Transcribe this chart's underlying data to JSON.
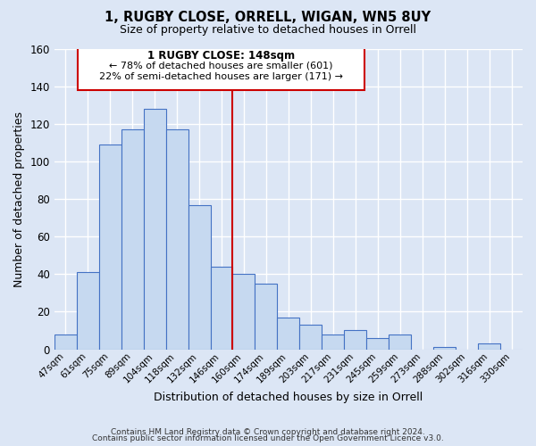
{
  "title": "1, RUGBY CLOSE, ORRELL, WIGAN, WN5 8UY",
  "subtitle": "Size of property relative to detached houses in Orrell",
  "xlabel": "Distribution of detached houses by size in Orrell",
  "ylabel": "Number of detached properties",
  "bar_labels": [
    "47sqm",
    "61sqm",
    "75sqm",
    "89sqm",
    "104sqm",
    "118sqm",
    "132sqm",
    "146sqm",
    "160sqm",
    "174sqm",
    "189sqm",
    "203sqm",
    "217sqm",
    "231sqm",
    "245sqm",
    "259sqm",
    "273sqm",
    "288sqm",
    "302sqm",
    "316sqm",
    "330sqm"
  ],
  "bar_values": [
    8,
    41,
    109,
    117,
    128,
    117,
    77,
    44,
    40,
    35,
    17,
    13,
    8,
    10,
    6,
    8,
    0,
    1,
    0,
    3,
    0
  ],
  "bar_color": "#c6d9f0",
  "bar_edge_color": "#4472c4",
  "marker_index": 7,
  "annotation_title": "1 RUGBY CLOSE: 148sqm",
  "annotation_line1": "← 78% of detached houses are smaller (601)",
  "annotation_line2": "22% of semi-detached houses are larger (171) →",
  "annotation_box_color": "#ffffff",
  "annotation_box_edge": "#cc0000",
  "vline_color": "#cc0000",
  "footer_line1": "Contains HM Land Registry data © Crown copyright and database right 2024.",
  "footer_line2": "Contains public sector information licensed under the Open Government Licence v3.0.",
  "ylim": [
    0,
    160
  ],
  "yticks": [
    0,
    20,
    40,
    60,
    80,
    100,
    120,
    140,
    160
  ],
  "background_color": "#dce6f5",
  "plot_bg_color": "#dce6f5",
  "grid_color": "#ffffff"
}
